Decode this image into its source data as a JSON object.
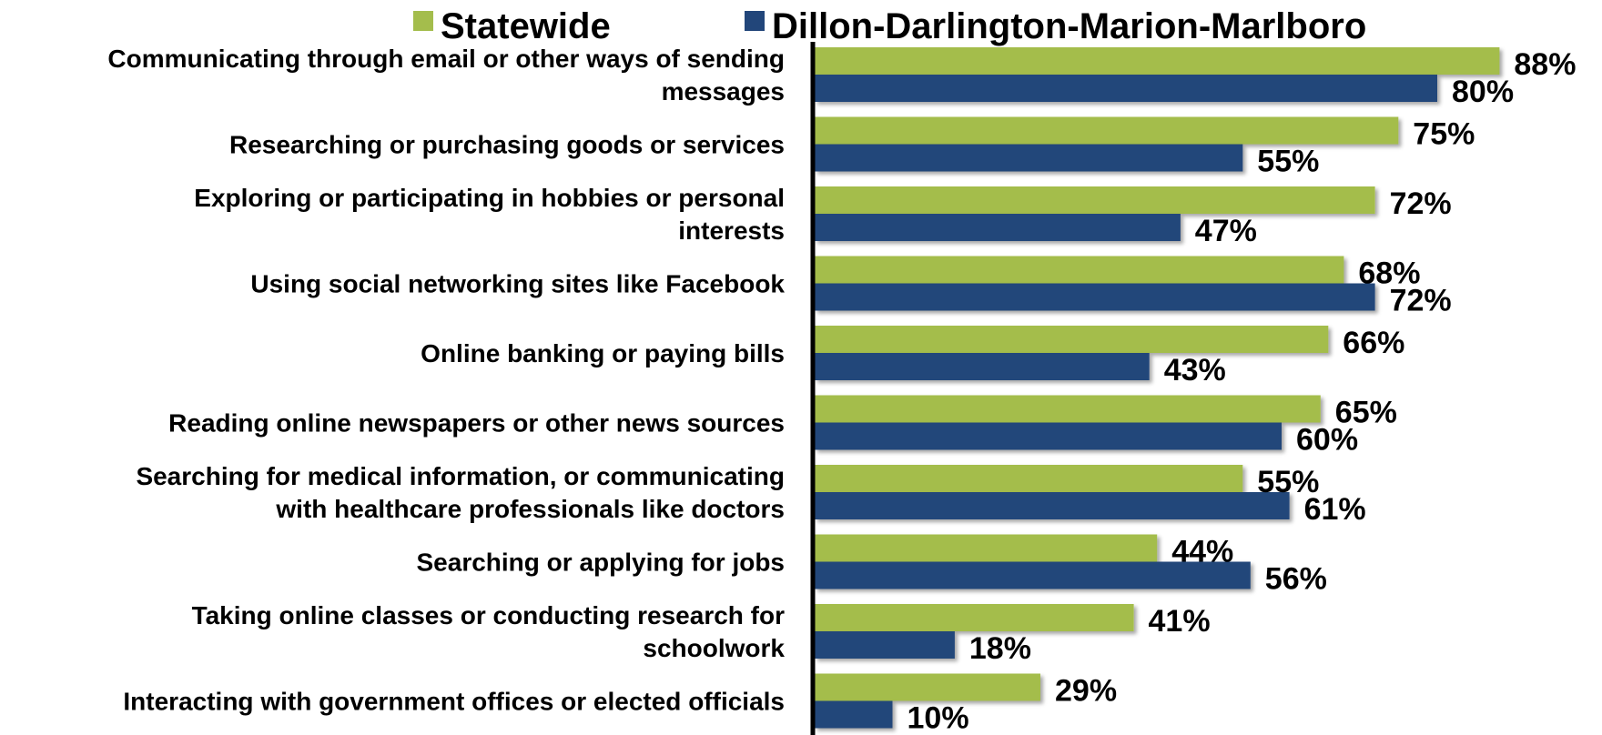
{
  "chart_data": {
    "type": "bar",
    "orientation": "horizontal",
    "legend_position": "top",
    "grid": false,
    "xlim": [
      0,
      100
    ],
    "categories": [
      [
        "Communicating through email or other ways of sending",
        "messages"
      ],
      [
        "Researching or purchasing goods or services"
      ],
      [
        "Exploring or participating in hobbies or personal",
        "interests"
      ],
      [
        "Using social networking sites like Facebook"
      ],
      [
        "Online banking or paying bills"
      ],
      [
        "Reading online newspapers or other news sources"
      ],
      [
        "Searching for medical information, or communicating",
        "with healthcare professionals like doctors"
      ],
      [
        "Searching or applying for jobs"
      ],
      [
        "Taking online classes or conducting research for",
        "schoolwork"
      ],
      [
        "Interacting with government offices or elected officials"
      ]
    ],
    "series": [
      {
        "name": "Statewide",
        "color": "#a4bd4c",
        "values": [
          88,
          75,
          72,
          68,
          66,
          65,
          55,
          44,
          41,
          29
        ],
        "labels": [
          "88%",
          "75%",
          "72%",
          "68%",
          "66%",
          "65%",
          "55%",
          "44%",
          "41%",
          "29%"
        ]
      },
      {
        "name": "Dillon-Darlington-Marion-Marlboro",
        "color": "#22467a",
        "values": [
          80,
          55,
          47,
          72,
          43,
          60,
          61,
          56,
          18,
          10
        ],
        "labels": [
          "80%",
          "55%",
          "47%",
          "72%",
          "43%",
          "60%",
          "61%",
          "56%",
          "18%",
          "10%"
        ]
      }
    ]
  }
}
